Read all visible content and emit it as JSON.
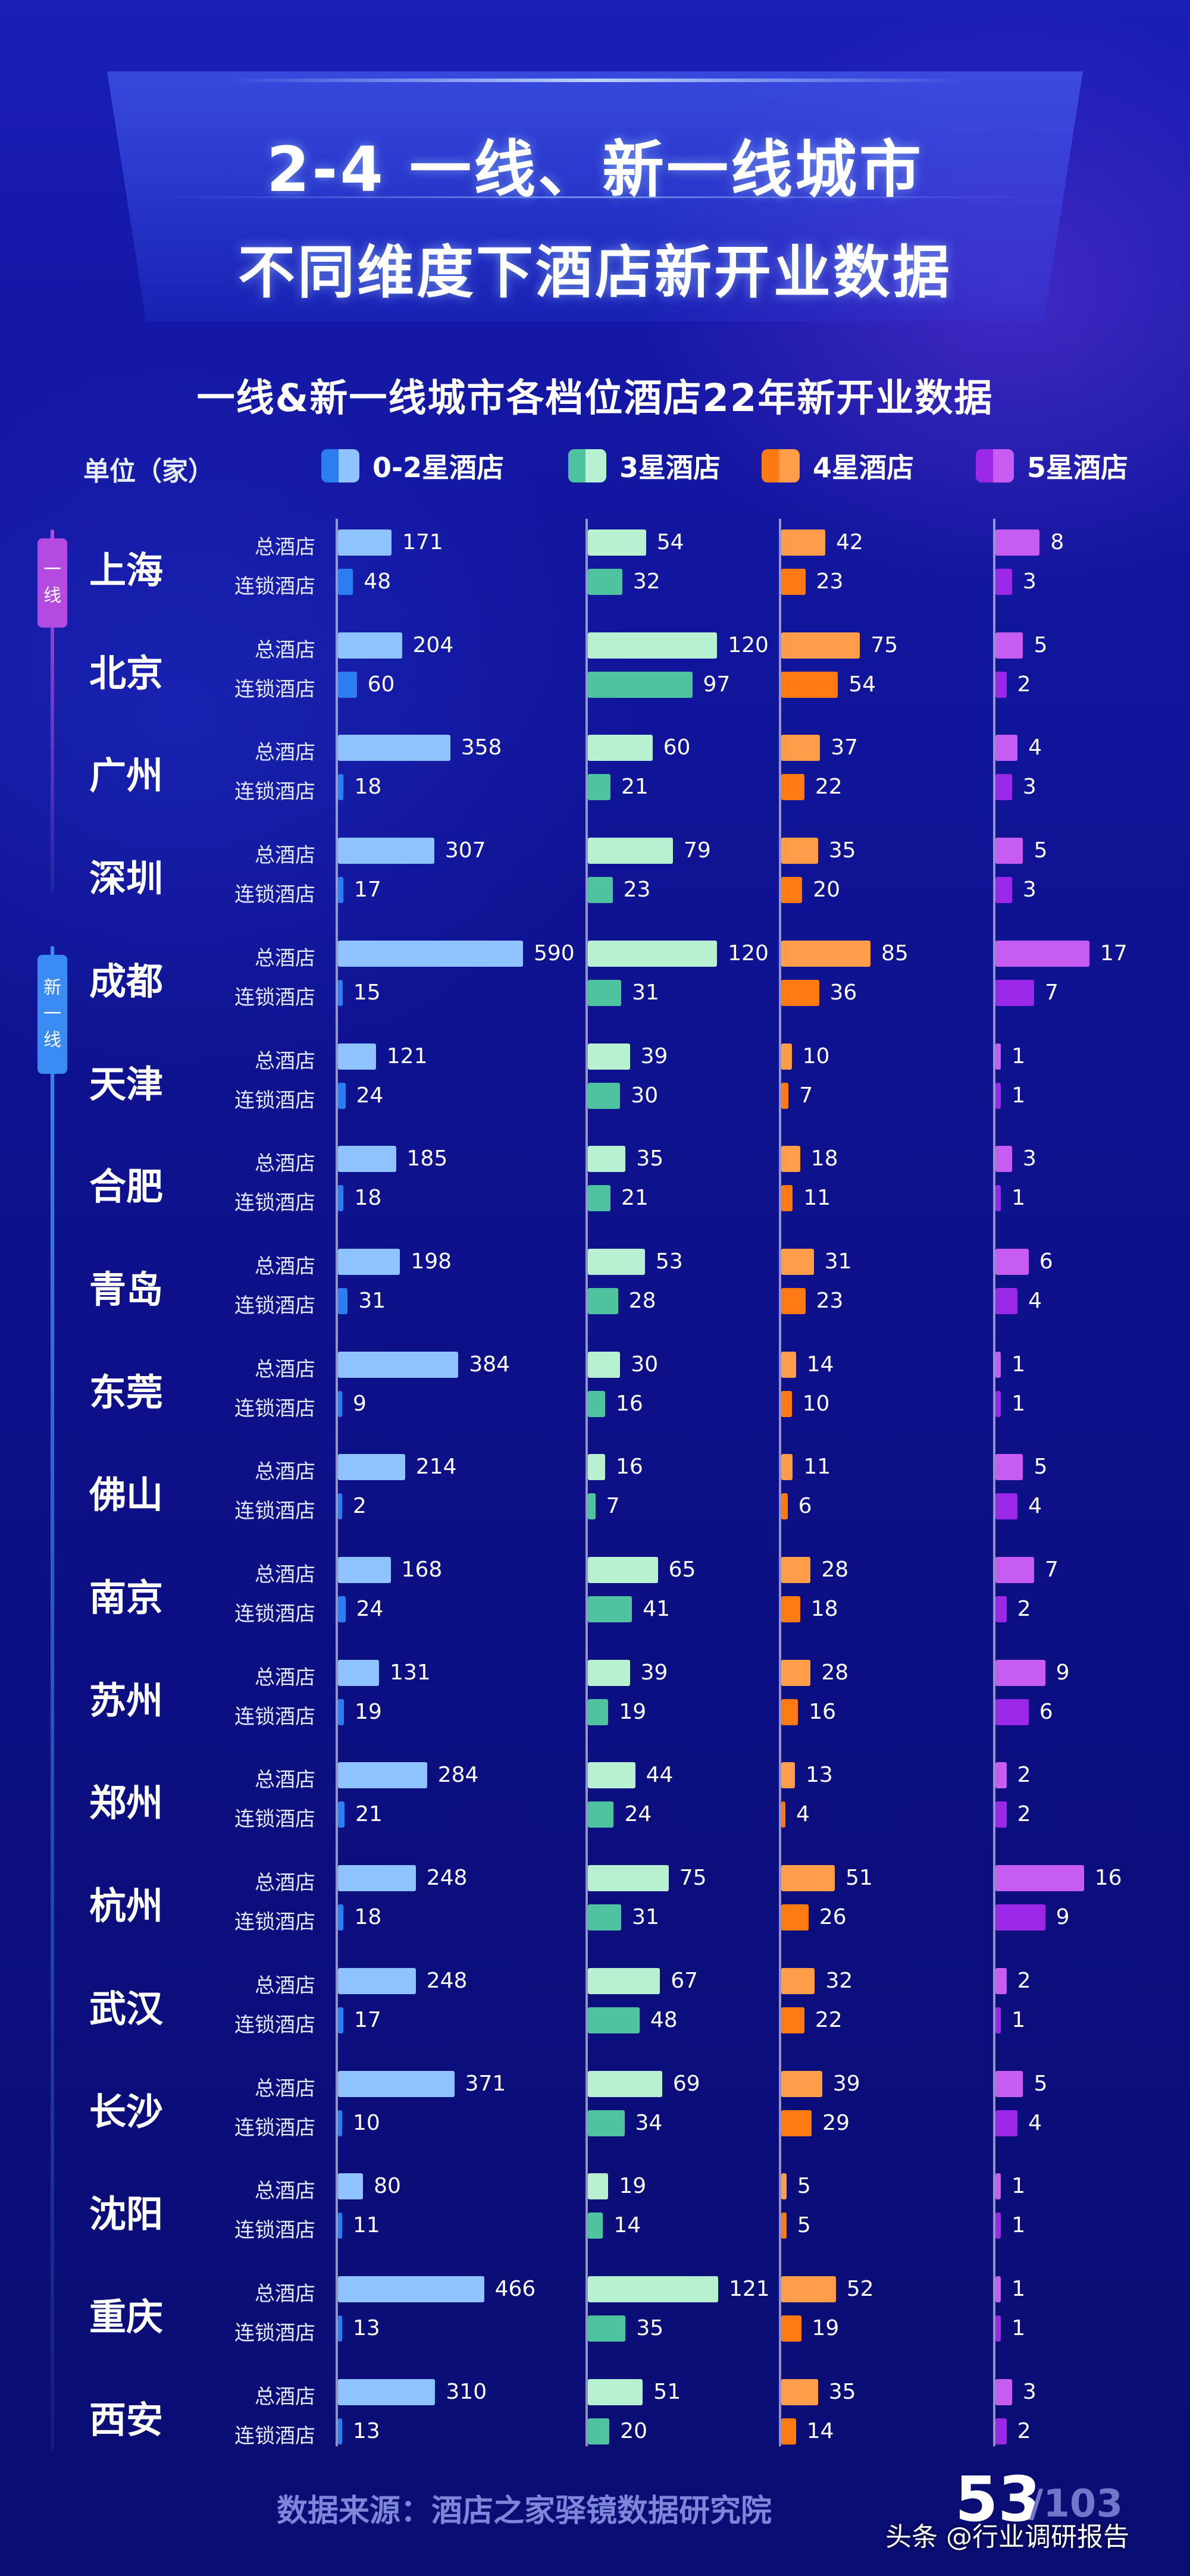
{
  "header": {
    "title_line1": "2-4  一线、新一线城市",
    "title_line2": "不同维度下酒店新开业数据"
  },
  "colors": {
    "background": "#1418a6",
    "series_primary": [
      "#8ec3ff",
      "#b8f0d2",
      "#ff9d4a",
      "#c65cf2"
    ],
    "series_secondary": [
      "#2e7df0",
      "#4fc3a0",
      "#ff7a12",
      "#9a28e6"
    ],
    "tier1_line": "#b44be0",
    "newtier1_line": "#3a8cf4"
  },
  "groups": [
    {
      "label": "一线",
      "chars": [
        "一",
        "线"
      ]
    },
    {
      "label": "新一线",
      "chars": [
        "新",
        "一",
        "线"
      ]
    }
  ],
  "footer": {
    "source": "数据来源：酒店之家驿镜数据研究院",
    "page": "53",
    "page_total": "/103",
    "watermark": "头条 @行业调研报告"
  },
  "chart_data": {
    "type": "bar",
    "title": "一线&新一线城市各档位酒店22年新开业数据",
    "unit_label": "单位（家）",
    "legend": [
      "0-2星酒店",
      "3星酒店",
      "4星酒店",
      "5星酒店"
    ],
    "legend_placement": "top",
    "row_labels": [
      "总酒店",
      "连锁酒店"
    ],
    "cities": [
      {
        "name": "上海",
        "total": [
          171,
          54,
          42,
          8
        ],
        "chain": [
          48,
          32,
          23,
          3
        ]
      },
      {
        "name": "北京",
        "total": [
          204,
          120,
          75,
          5
        ],
        "chain": [
          60,
          97,
          54,
          2
        ]
      },
      {
        "name": "广州",
        "total": [
          358,
          60,
          37,
          4
        ],
        "chain": [
          18,
          21,
          22,
          3
        ]
      },
      {
        "name": "深圳",
        "total": [
          307,
          79,
          35,
          5
        ],
        "chain": [
          17,
          23,
          20,
          3
        ]
      },
      {
        "name": "成都",
        "total": [
          590,
          120,
          85,
          17
        ],
        "chain": [
          15,
          31,
          36,
          7
        ]
      },
      {
        "name": "天津",
        "total": [
          121,
          39,
          10,
          1
        ],
        "chain": [
          24,
          30,
          7,
          1
        ]
      },
      {
        "name": "合肥",
        "total": [
          185,
          35,
          18,
          3
        ],
        "chain": [
          18,
          21,
          11,
          1
        ]
      },
      {
        "name": "青岛",
        "total": [
          198,
          53,
          31,
          6
        ],
        "chain": [
          31,
          28,
          23,
          4
        ]
      },
      {
        "name": "东莞",
        "total": [
          384,
          30,
          14,
          1
        ],
        "chain": [
          9,
          16,
          10,
          1
        ]
      },
      {
        "name": "佛山",
        "total": [
          214,
          16,
          11,
          5
        ],
        "chain": [
          2,
          7,
          6,
          4
        ]
      },
      {
        "name": "南京",
        "total": [
          168,
          65,
          28,
          7
        ],
        "chain": [
          24,
          41,
          18,
          2
        ]
      },
      {
        "name": "苏州",
        "total": [
          131,
          39,
          28,
          9
        ],
        "chain": [
          19,
          19,
          16,
          6
        ]
      },
      {
        "name": "郑州",
        "total": [
          284,
          44,
          13,
          2
        ],
        "chain": [
          21,
          24,
          4,
          2
        ]
      },
      {
        "name": "杭州",
        "total": [
          248,
          75,
          51,
          16
        ],
        "chain": [
          18,
          31,
          26,
          9
        ]
      },
      {
        "name": "武汉",
        "total": [
          248,
          67,
          32,
          2
        ],
        "chain": [
          17,
          48,
          22,
          1
        ]
      },
      {
        "name": "长沙",
        "total": [
          371,
          69,
          39,
          5
        ],
        "chain": [
          10,
          34,
          29,
          4
        ]
      },
      {
        "name": "沈阳",
        "total": [
          80,
          19,
          5,
          1
        ],
        "chain": [
          11,
          14,
          5,
          1
        ]
      },
      {
        "name": "重庆",
        "total": [
          466,
          121,
          52,
          1
        ],
        "chain": [
          13,
          35,
          19,
          1
        ]
      },
      {
        "name": "西安",
        "total": [
          310,
          51,
          35,
          3
        ],
        "chain": [
          13,
          20,
          14,
          2
        ]
      }
    ]
  }
}
